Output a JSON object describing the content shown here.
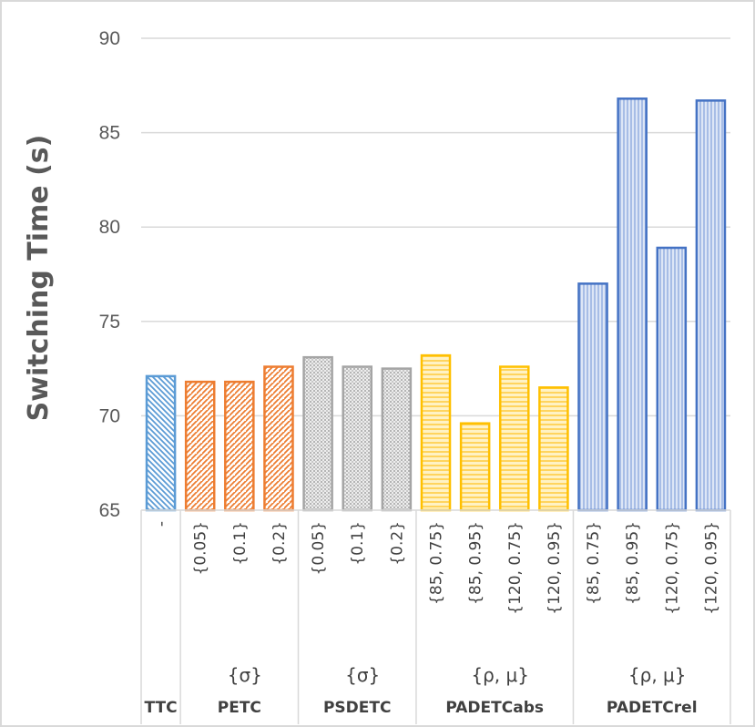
{
  "chart_data": {
    "type": "bar",
    "ylabel": "Switching Time (s)",
    "ylim": [
      65,
      90
    ],
    "yticks": [
      65,
      70,
      75,
      80,
      85,
      90
    ],
    "grid": true,
    "groups": [
      {
        "name": "TTC",
        "sublabel": "",
        "color": "#5b9bd5",
        "pattern": "diagonal-down",
        "categories": [
          "-"
        ],
        "values": [
          72.1
        ]
      },
      {
        "name": "PETC",
        "sublabel": "{σ}",
        "color": "#ed7d31",
        "pattern": "diagonal-up",
        "categories": [
          "{0.05}",
          "{0.1}",
          "{0.2}"
        ],
        "values": [
          71.8,
          71.8,
          72.6
        ]
      },
      {
        "name": "PSDETC",
        "sublabel": "{σ}",
        "color": "#a5a5a5",
        "pattern": "dots",
        "categories": [
          "{0.05}",
          "{0.1}",
          "{0.2}"
        ],
        "values": [
          73.1,
          72.6,
          72.5
        ]
      },
      {
        "name": "PADETCabs",
        "sublabel": "{ρ, μ}",
        "color": "#ffc000",
        "pattern": "horizontal",
        "categories": [
          "{85, 0.75}",
          "{85, 0.95}",
          "{120, 0.75}",
          "{120, 0.95}"
        ],
        "values": [
          73.2,
          69.6,
          72.6,
          71.5
        ]
      },
      {
        "name": "PADETCrel",
        "sublabel": "{ρ, μ}",
        "color": "#4472c4",
        "pattern": "vertical",
        "categories": [
          "{85, 0.75}",
          "{85, 0.95}",
          "{120, 0.75}",
          "{120, 0.95}"
        ],
        "values": [
          77.0,
          86.8,
          78.9,
          86.7
        ]
      }
    ]
  }
}
